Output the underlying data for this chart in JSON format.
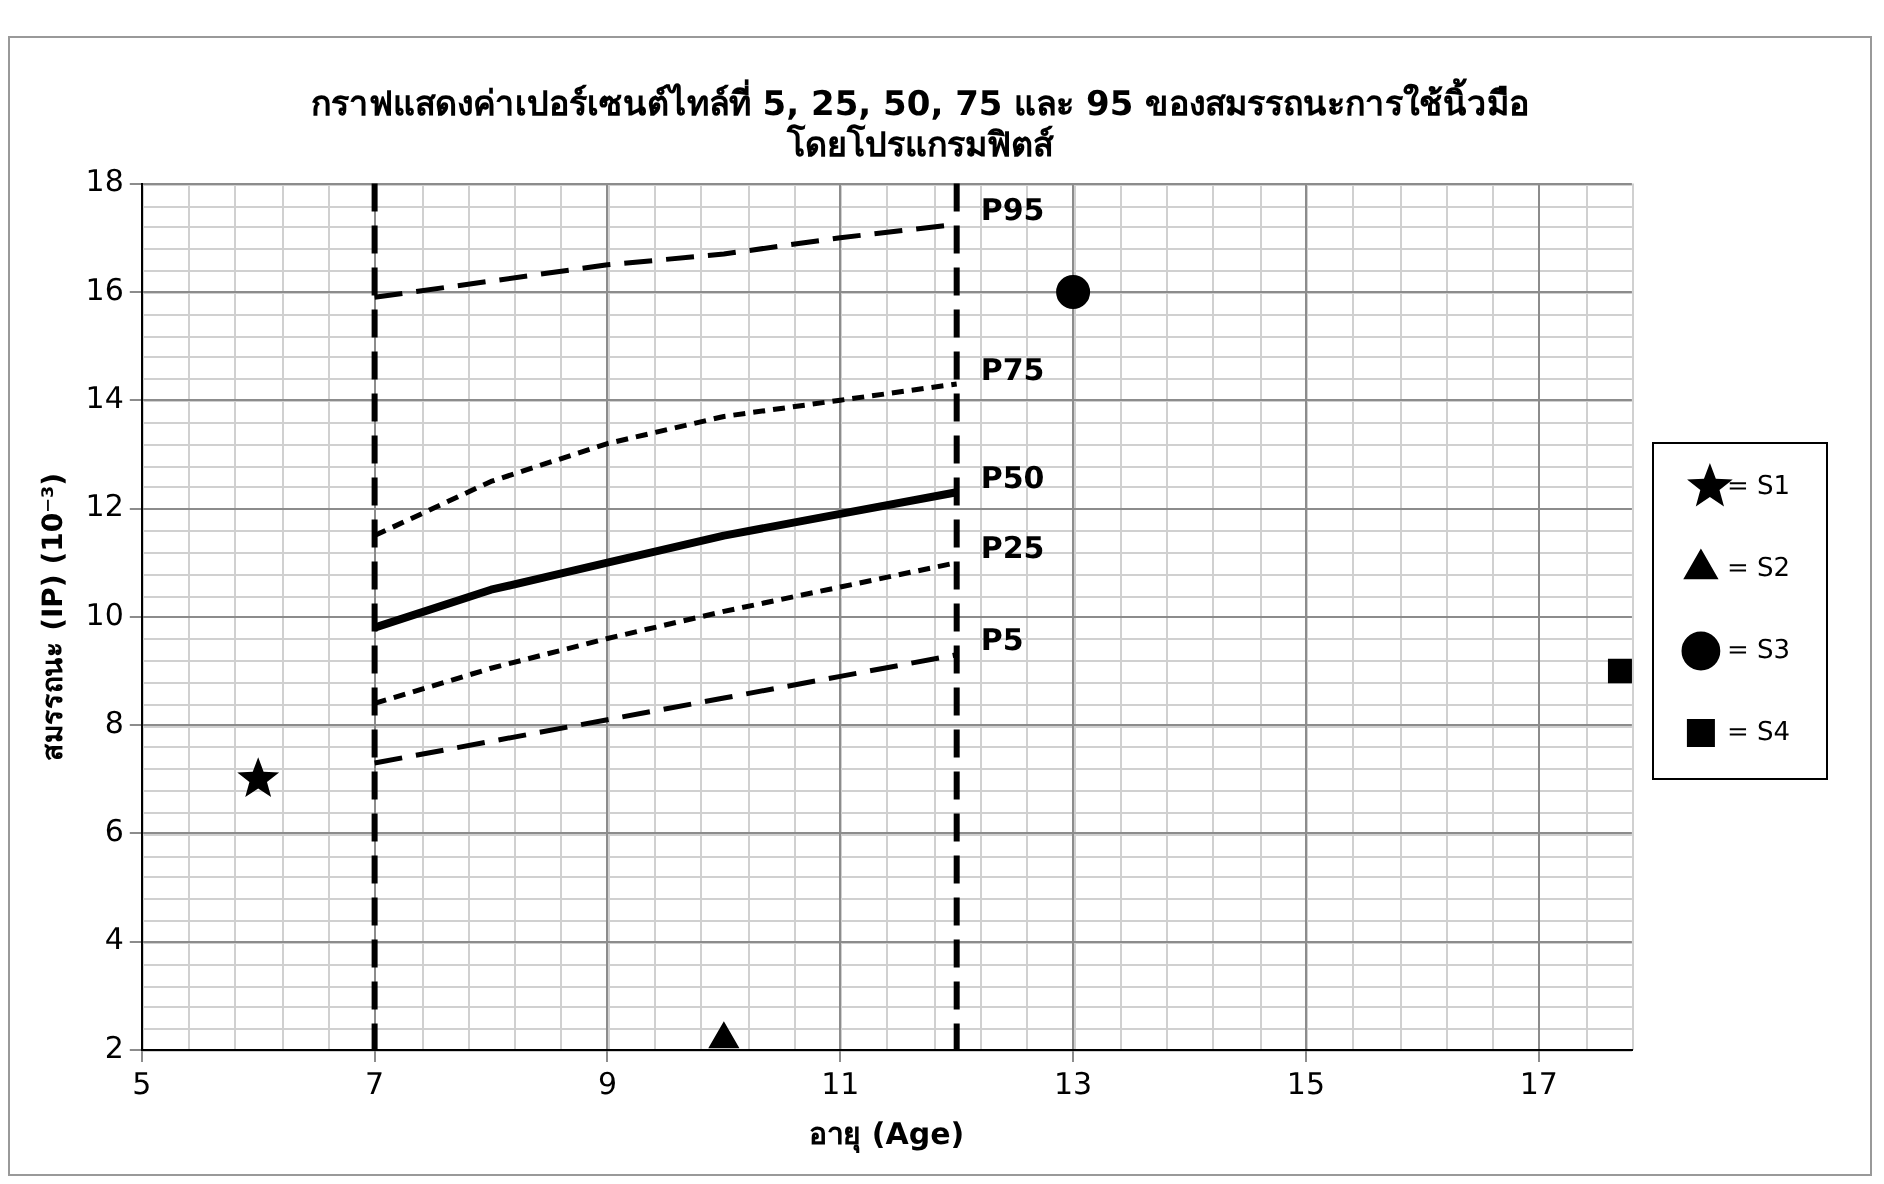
{
  "chart_data": {
    "type": "line",
    "title": "กราฟแสดงค่าเปอร์เซนต์ไทล์ที่ 5, 25, 50, 75 และ 95 ของสมรรถนะการใช้นิ้วมือ\nโดยโปรแกรมฟิตส์",
    "xlabel": "อายุ (Age)",
    "ylabel": "สมรรถนะ (IP) (10⁻³)",
    "xlim": [
      5,
      17.8
    ],
    "xticks": [
      5,
      7,
      9,
      11,
      13,
      15,
      17
    ],
    "ylim": [
      2,
      18
    ],
    "yticks": [
      2,
      4,
      6,
      8,
      10,
      12,
      14,
      16,
      18
    ],
    "grid": true,
    "legend": "right",
    "ref_lines": [
      {
        "axis": "x",
        "value": 7,
        "color": "#000000",
        "line_style": "dashed"
      },
      {
        "axis": "x",
        "value": 12,
        "color": "#000000",
        "line_style": "dashed"
      }
    ],
    "series": [
      {
        "name": "P95",
        "type": "line",
        "color": "#000000",
        "line_style": "dashed",
        "x": [
          7,
          8,
          9,
          10,
          11,
          12
        ],
        "values": [
          15.9,
          16.2,
          16.5,
          16.7,
          17.0,
          17.25
        ]
      },
      {
        "name": "P75",
        "type": "line",
        "color": "#000000",
        "line_style": "dotted",
        "x": [
          7,
          8,
          9,
          10,
          11,
          12
        ],
        "values": [
          11.5,
          12.5,
          13.2,
          13.7,
          14.0,
          14.3
        ]
      },
      {
        "name": "P50",
        "type": "line",
        "color": "#000000",
        "line_style": "solid",
        "x": [
          7,
          8,
          9,
          10,
          11,
          12
        ],
        "values": [
          9.8,
          10.5,
          11.0,
          11.5,
          11.9,
          12.3
        ]
      },
      {
        "name": "P25",
        "type": "line",
        "color": "#000000",
        "line_style": "dotted",
        "x": [
          7,
          8,
          9,
          10,
          11,
          12
        ],
        "values": [
          8.4,
          9.05,
          9.6,
          10.1,
          10.55,
          11.0
        ]
      },
      {
        "name": "P5",
        "type": "line",
        "color": "#000000",
        "line_style": "dashed",
        "x": [
          7,
          8,
          9,
          10,
          11,
          12
        ],
        "values": [
          7.3,
          7.7,
          8.1,
          8.5,
          8.9,
          9.3
        ]
      },
      {
        "name": "= S1",
        "type": "scatter",
        "color": "#000000",
        "marker": "star",
        "x": [
          6
        ],
        "values": [
          7
        ]
      },
      {
        "name": "= S2",
        "type": "scatter",
        "color": "#000000",
        "marker": "triangle",
        "x": [
          10
        ],
        "values": [
          2.2
        ]
      },
      {
        "name": "= S3",
        "type": "scatter",
        "color": "#000000",
        "marker": "circle",
        "x": [
          13
        ],
        "values": [
          16
        ]
      },
      {
        "name": "= S4",
        "type": "scatter",
        "color": "#000000",
        "marker": "square",
        "x": [
          17.7
        ],
        "values": [
          9
        ]
      }
    ]
  }
}
